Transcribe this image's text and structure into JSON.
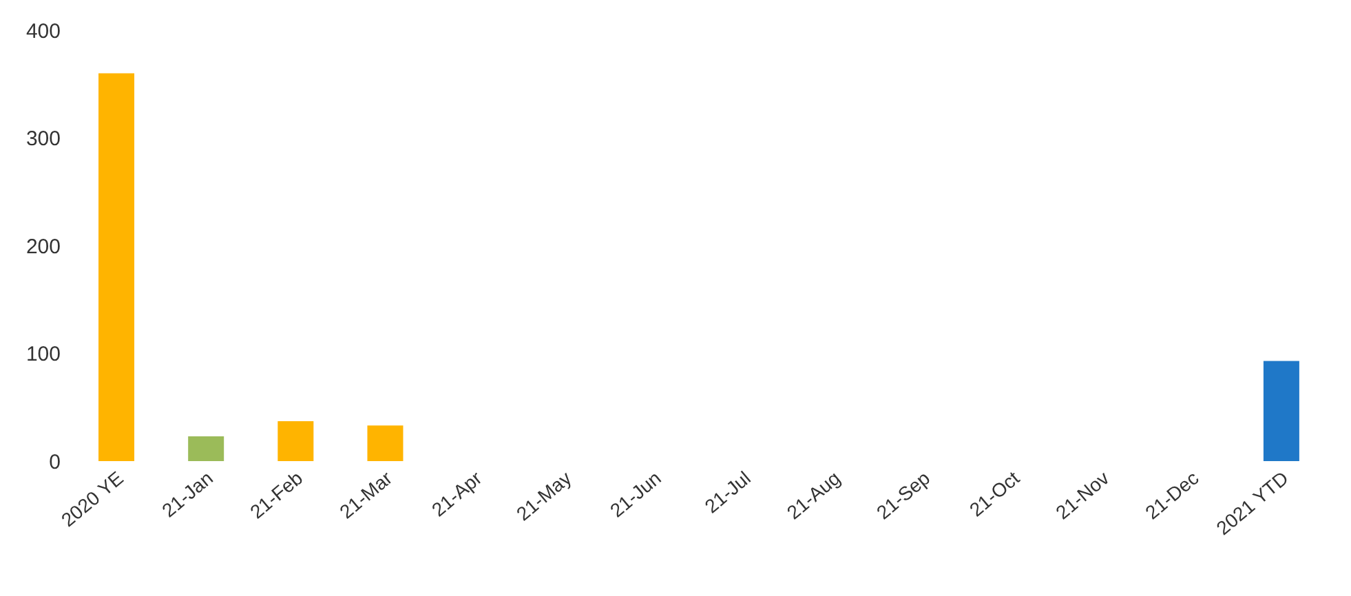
{
  "chart_data": {
    "type": "bar",
    "categories": [
      "2020 YE",
      "21-Jan",
      "21-Feb",
      "21-Mar",
      "21-Apr",
      "21-May",
      "21-Jun",
      "21-Jul",
      "21-Aug",
      "21-Sep",
      "21-Oct",
      "21-Nov",
      "21-Dec",
      "2021 YTD"
    ],
    "values": [
      360,
      23,
      37,
      33,
      null,
      null,
      null,
      null,
      null,
      null,
      null,
      null,
      null,
      93
    ],
    "colors": [
      "#ffb400",
      "#9bbb59",
      "#ffb400",
      "#ffb400",
      "#ffb400",
      "#ffb400",
      "#ffb400",
      "#ffb400",
      "#ffb400",
      "#ffb400",
      "#ffb400",
      "#ffb400",
      "#ffb400",
      "#1f78c8"
    ],
    "ylim": [
      0,
      400
    ],
    "yticks": [
      0,
      100,
      200,
      300,
      400
    ],
    "grid": false,
    "legend": false
  }
}
